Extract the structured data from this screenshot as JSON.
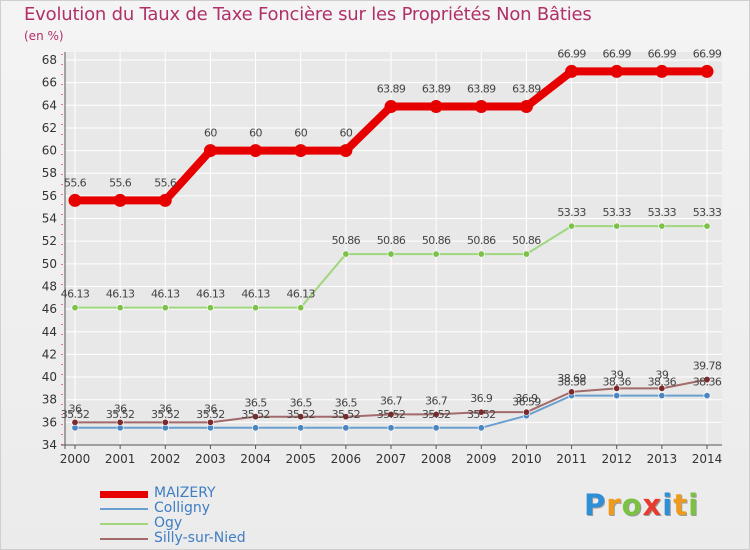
{
  "title": "Evolution du Taux de Taxe Foncière sur les Propriétés Non Bâties",
  "subtitle": "(en %)",
  "brand": {
    "letters": [
      "P",
      "r",
      "o",
      "x",
      "i",
      "t",
      "i"
    ],
    "colors": [
      "#2f8fd6",
      "#f09a1c",
      "#7cc242",
      "#e63b2e",
      "#2f8fd6",
      "#f09a1c",
      "#7cc242"
    ]
  },
  "colors": {
    "MAIZERY": "#e60000",
    "Colligny": "#6a9fd0",
    "Ogy": "#9fd67e",
    "Silly-sur-Nied": "#7a2a2a",
    "grid": "#ffffff",
    "axis_text": "#333333",
    "label_text": "#444444",
    "accent": "#e03030"
  },
  "chart_data": {
    "type": "line",
    "title": "Evolution du Taux de Taxe Foncière sur les Propriétés Non Bâties",
    "ylabel": "(en %)",
    "xlabel": "",
    "ylim": [
      34,
      68
    ],
    "yticks": [
      "34",
      "36",
      "38",
      "40",
      "42",
      "44",
      "46",
      "48",
      "50",
      "52",
      "54",
      "56",
      "58",
      "60",
      "62",
      "64",
      "66",
      "68"
    ],
    "x": [
      "2000",
      "2001",
      "2002",
      "2003",
      "2004",
      "2005",
      "2006",
      "2007",
      "2008",
      "2009",
      "2010",
      "2011",
      "2012",
      "2013",
      "2014"
    ],
    "series": [
      {
        "name": "MAIZERY",
        "values": [
          55.6,
          55.6,
          55.6,
          60,
          60,
          60,
          60,
          63.89,
          63.89,
          63.89,
          63.89,
          66.99,
          66.99,
          66.99,
          66.99
        ],
        "labels": [
          "55.6",
          "55.6",
          "55.6",
          "60",
          "60",
          "60",
          "60",
          "63.89",
          "63.89",
          "63.89",
          "63.89",
          "66.99",
          "66.99",
          "66.99",
          "66.99"
        ]
      },
      {
        "name": "Colligny",
        "values": [
          35.52,
          35.52,
          35.52,
          35.52,
          35.52,
          35.52,
          35.52,
          35.52,
          35.52,
          35.52,
          36.59,
          38.36,
          38.36,
          38.36,
          38.36
        ],
        "labels": [
          "35.52",
          "35.52",
          "35.52",
          "35.52",
          "35.52",
          "35.52",
          "35.52",
          "35.52",
          "35.52",
          "35.52",
          "36.59",
          "38.36",
          "38.36",
          "38.36",
          "38.36"
        ]
      },
      {
        "name": "Ogy",
        "values": [
          46.13,
          46.13,
          46.13,
          46.13,
          46.13,
          46.13,
          50.86,
          50.86,
          50.86,
          50.86,
          50.86,
          53.33,
          53.33,
          53.33,
          53.33
        ],
        "labels": [
          "46.13",
          "46.13",
          "46.13",
          "46.13",
          "46.13",
          "46.13",
          "50.86",
          "50.86",
          "50.86",
          "50.86",
          "50.86",
          "53.33",
          "53.33",
          "53.33",
          "53.33"
        ]
      },
      {
        "name": "Silly-sur-Nied",
        "values": [
          36,
          36,
          36,
          36,
          36.5,
          36.5,
          36.5,
          36.7,
          36.7,
          36.9,
          36.9,
          38.69,
          39,
          39,
          39.78
        ],
        "labels": [
          "36",
          "36",
          "36",
          "36",
          "36.5",
          "36.5",
          "36.5",
          "36.7",
          "36.7",
          "36.9",
          "36.9",
          "38.69",
          "39",
          "39",
          "39.78"
        ]
      }
    ],
    "legend": [
      "MAIZERY",
      "Colligny",
      "Ogy",
      "Silly-sur-Nied"
    ]
  }
}
